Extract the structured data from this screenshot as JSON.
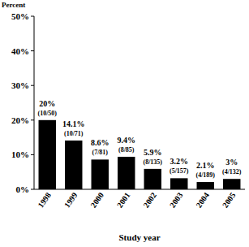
{
  "chart_data": {
    "type": "bar",
    "y_label": "Percent",
    "x_label": "Study year",
    "categories": [
      "1998",
      "1999",
      "2000",
      "2001",
      "2002",
      "2003",
      "2004",
      "2005"
    ],
    "values": [
      20,
      14.1,
      8.6,
      9.4,
      5.9,
      3.2,
      2.1,
      3
    ],
    "value_labels": [
      "20%",
      "14.1%",
      "8.6%",
      "9.4%",
      "5.9%",
      "3.2%",
      "2.1%",
      "3%"
    ],
    "fractions": [
      "(10/50)",
      "(10/71)",
      "(7/81)",
      "(8/85)",
      "(8/135)",
      "(5/157)",
      "(4/189)",
      "(4/132)"
    ],
    "color": "#000000",
    "ylim": [
      0,
      50
    ],
    "yticks": [
      {
        "value": 0,
        "label": "0%"
      },
      {
        "value": 10,
        "label": "10%"
      },
      {
        "value": 20,
        "label": "20%"
      },
      {
        "value": 30,
        "label": "30%"
      },
      {
        "value": 40,
        "label": "40%"
      },
      {
        "value": 50,
        "label": "50%"
      }
    ],
    "grid": false,
    "data_labels": true
  }
}
